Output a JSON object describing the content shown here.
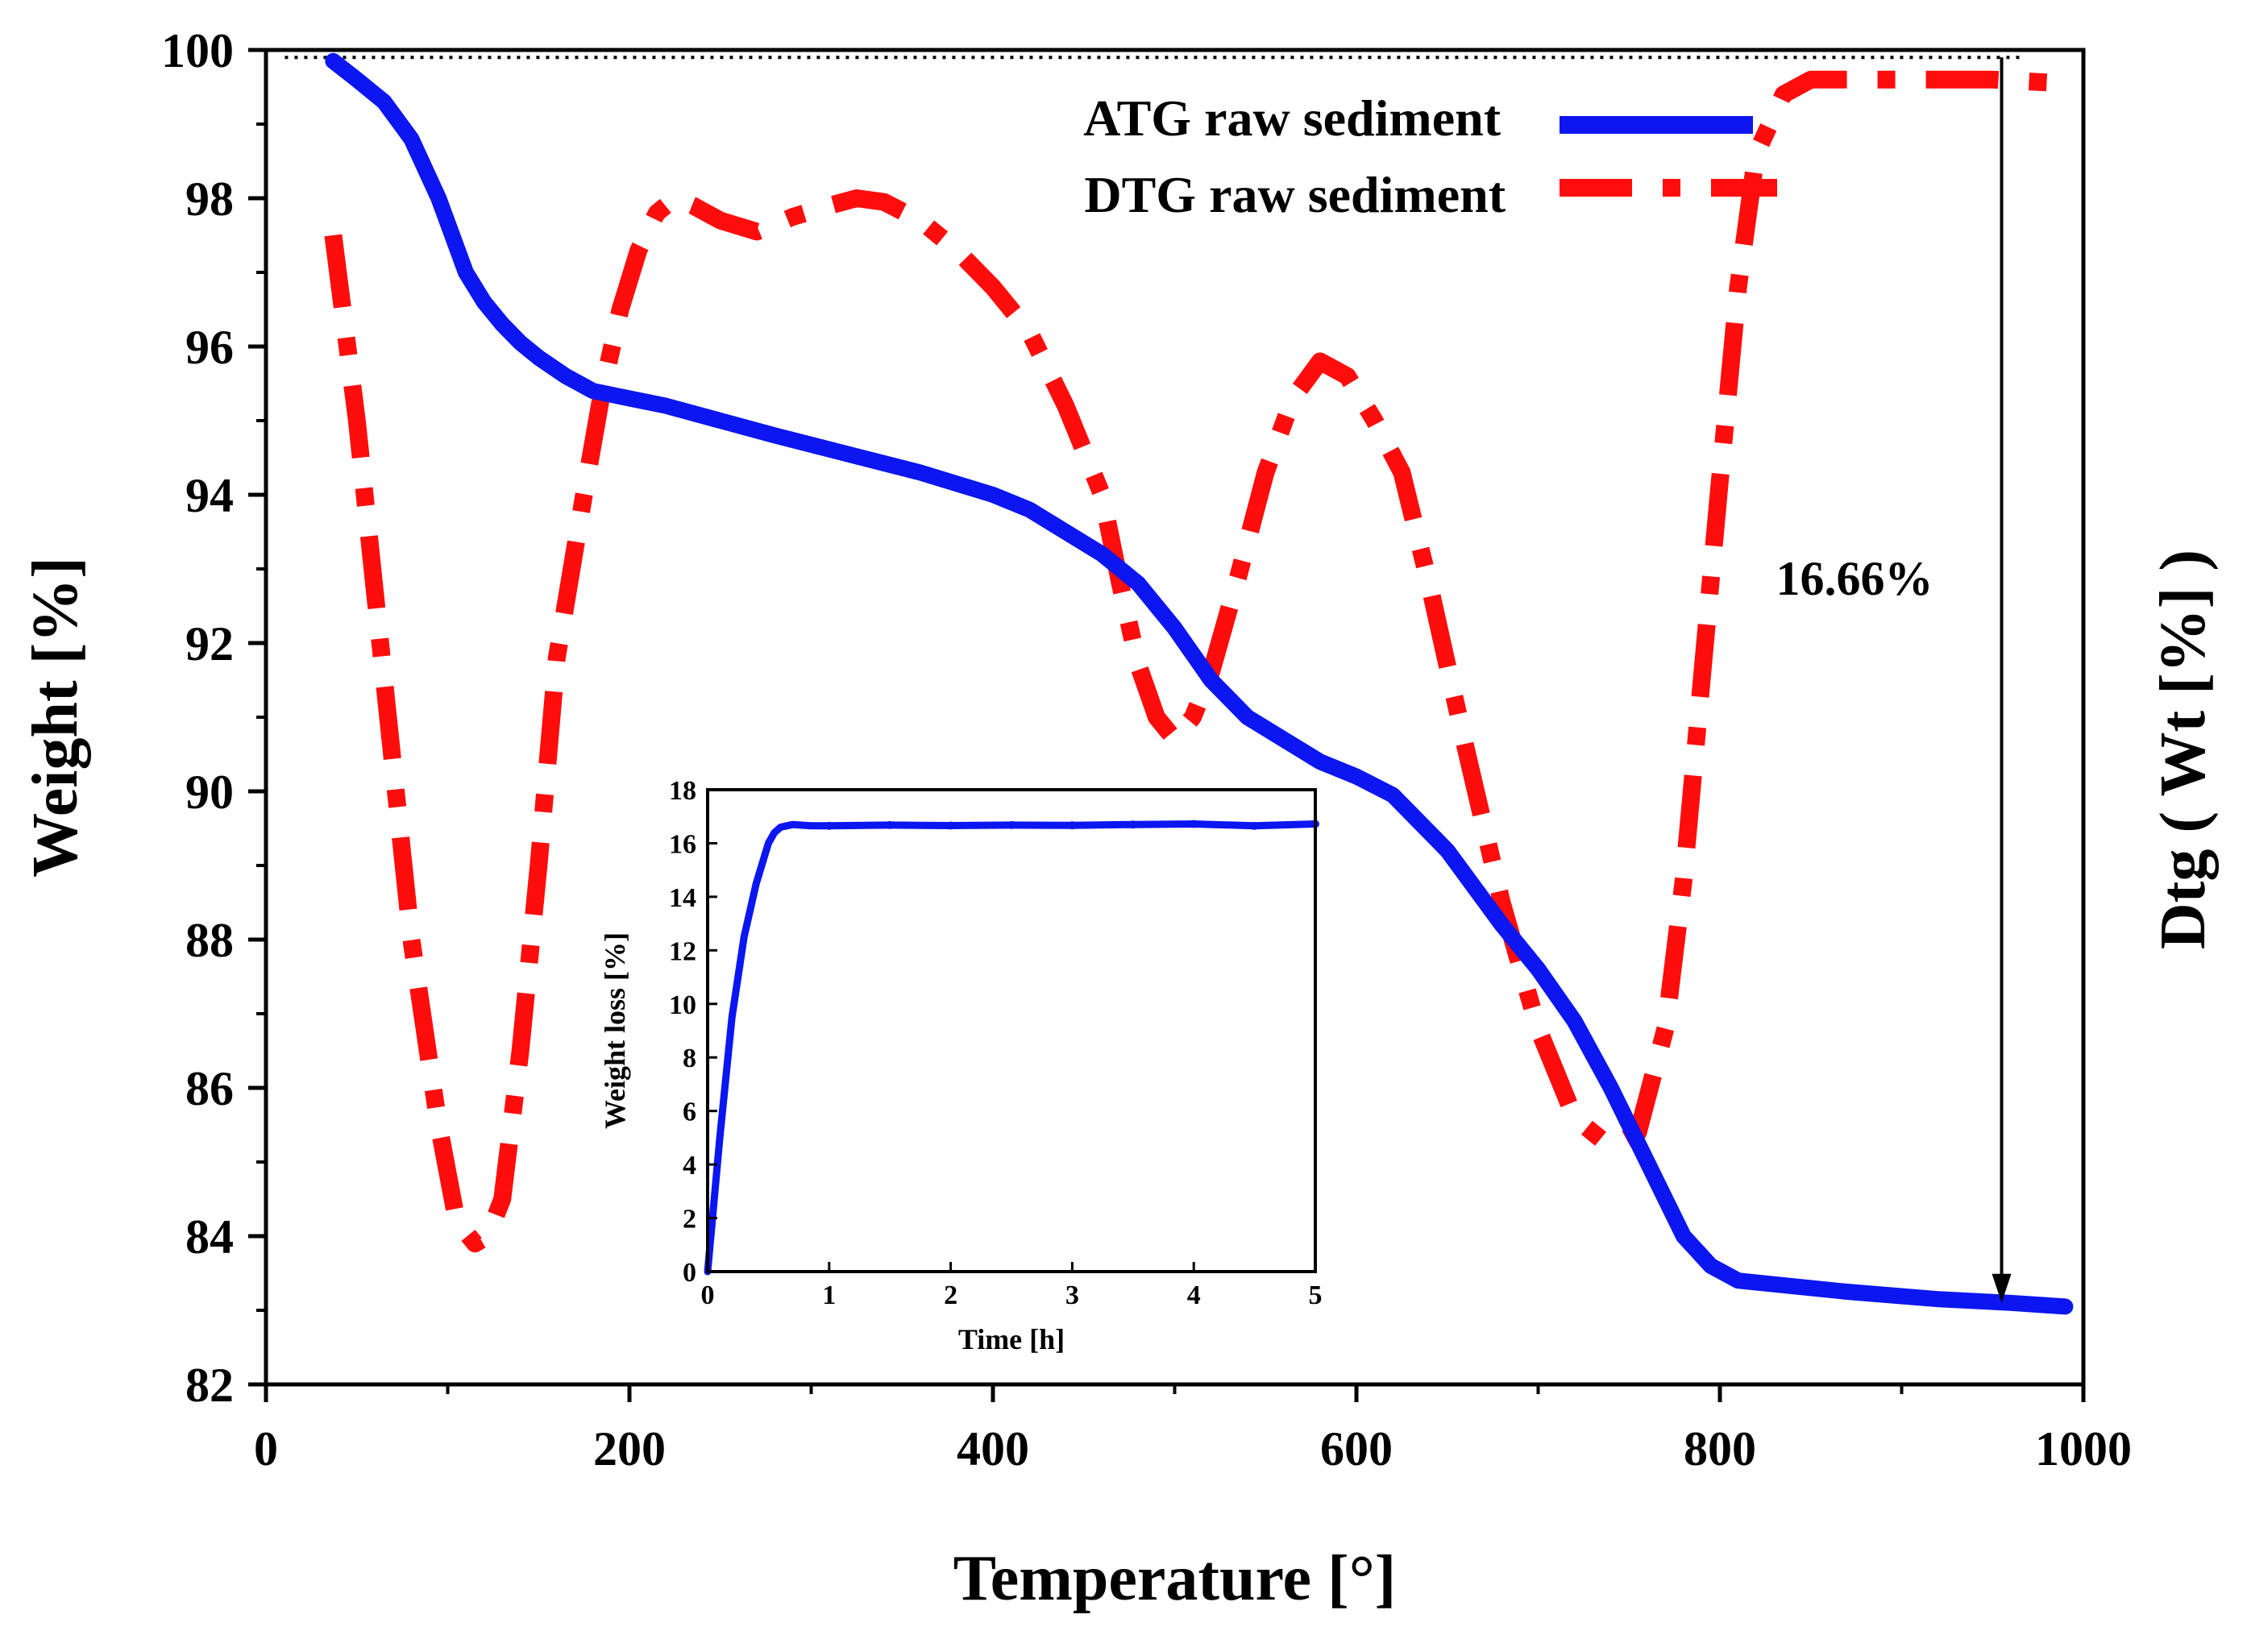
{
  "chart_data": {
    "type": "line",
    "main": {
      "xlabel": "Temperature [°]",
      "ylabel": "Weight [%]",
      "y2label": "Dtg ( Wt [%] )",
      "xlim": [
        0,
        1000
      ],
      "ylim": [
        82,
        100
      ],
      "x_ticks": [
        0,
        200,
        400,
        600,
        800,
        1000
      ],
      "y_ticks": [
        82,
        84,
        86,
        88,
        90,
        92,
        94,
        96,
        98,
        100
      ],
      "series": [
        {
          "name": "ATG raw sediment",
          "style": "solid",
          "color": "#0b16f0",
          "x": [
            37,
            50,
            65,
            80,
            95,
            110,
            120,
            130,
            140,
            150,
            165,
            180,
            200,
            220,
            250,
            280,
            320,
            360,
            400,
            420,
            440,
            460,
            480,
            500,
            520,
            540,
            560,
            580,
            600,
            620,
            650,
            680,
            700,
            720,
            740,
            760,
            780,
            795,
            810,
            830,
            870,
            920,
            960,
            990
          ],
          "y": [
            99.85,
            99.6,
            99.3,
            98.8,
            98.0,
            97.0,
            96.6,
            96.3,
            96.05,
            95.85,
            95.6,
            95.4,
            95.3,
            95.2,
            95.0,
            94.8,
            94.55,
            94.3,
            94.0,
            93.8,
            93.5,
            93.2,
            92.8,
            92.2,
            91.5,
            91.0,
            90.7,
            90.4,
            90.2,
            89.95,
            89.2,
            88.2,
            87.6,
            86.9,
            86.0,
            85.0,
            84.0,
            83.6,
            83.4,
            83.35,
            83.25,
            83.15,
            83.1,
            83.05
          ]
        },
        {
          "name": "DTG raw sediment",
          "style": "dash-dot",
          "color": "#ff0c0c",
          "x": [
            37,
            50,
            65,
            80,
            95,
            105,
            115,
            122,
            130,
            140,
            150,
            160,
            175,
            185,
            195,
            205,
            215,
            225,
            235,
            250,
            270,
            290,
            310,
            325,
            340,
            360,
            380,
            400,
            420,
            440,
            460,
            470,
            480,
            490,
            500,
            510,
            520,
            535,
            550,
            565,
            580,
            595,
            610,
            625,
            640,
            660,
            680,
            700,
            720,
            740,
            755,
            770,
            780,
            790,
            800,
            810,
            820,
            835,
            850,
            900,
            950,
            990
          ],
          "y": [
            97.5,
            95.0,
            91.5,
            88.0,
            85.5,
            84.2,
            83.9,
            84.0,
            84.5,
            86.5,
            89.0,
            91.8,
            94.0,
            95.4,
            96.5,
            97.3,
            97.8,
            98.0,
            97.9,
            97.7,
            97.55,
            97.75,
            97.9,
            98.0,
            97.95,
            97.7,
            97.3,
            96.8,
            96.2,
            95.2,
            94.0,
            92.8,
            91.7,
            91.0,
            90.7,
            91.0,
            91.6,
            92.9,
            94.3,
            95.3,
            95.8,
            95.6,
            95.0,
            94.3,
            92.8,
            90.6,
            88.5,
            86.8,
            85.6,
            85.2,
            85.4,
            86.8,
            88.8,
            91.5,
            94.2,
            96.8,
            98.6,
            99.4,
            99.6,
            99.6,
            99.6,
            99.55
          ]
        }
      ],
      "reference_line_y": 99.9,
      "annotation": {
        "text": "16.66%",
        "arrow_x": 955,
        "arrow_from_y": 99.9,
        "arrow_to_y": 83.1
      },
      "legend_position": "top-right"
    },
    "inset": {
      "type": "line",
      "xlabel": "Time [h]",
      "ylabel": "Weight loss [%]",
      "xlim": [
        0,
        5
      ],
      "ylim": [
        0,
        18
      ],
      "x_ticks": [
        0,
        1,
        2,
        3,
        4,
        5
      ],
      "y_ticks": [
        0,
        2,
        4,
        6,
        8,
        10,
        12,
        14,
        16,
        18
      ],
      "series": [
        {
          "name": "Weight loss",
          "color": "#0b16f0",
          "x": [
            0,
            0.1,
            0.2,
            0.3,
            0.4,
            0.5,
            0.55,
            0.6,
            0.7,
            0.85,
            1.0,
            1.5,
            2.0,
            2.5,
            3.0,
            3.5,
            4.0,
            4.5,
            5.0
          ],
          "y": [
            0,
            5.0,
            9.5,
            12.5,
            14.5,
            16.0,
            16.4,
            16.6,
            16.7,
            16.65,
            16.65,
            16.68,
            16.66,
            16.68,
            16.67,
            16.7,
            16.72,
            16.65,
            16.72
          ]
        }
      ]
    }
  }
}
